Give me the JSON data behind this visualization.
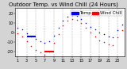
{
  "title": "Outdoor Temp. vs Wind Chill",
  "title2": "(24 Hours)",
  "bg_color": "#d4d4d4",
  "plot_bg_color": "#ffffff",
  "grid_color": "#888888",
  "temp_color": "#0000ff",
  "windchill_color": "#ff0000",
  "legend_temp_label": "Temp",
  "legend_wc_label": "Wind Chill",
  "temp_x": [
    1,
    2,
    3,
    4,
    5,
    6,
    7,
    8,
    9,
    10,
    11,
    12,
    13,
    14,
    15,
    16,
    17,
    18,
    19,
    20,
    21,
    22,
    23,
    24
  ],
  "temp_y": [
    5,
    3,
    -1,
    -4,
    -7,
    -9,
    -11,
    -9,
    -3,
    5,
    12,
    16,
    18,
    17,
    14,
    10,
    6,
    3,
    0,
    -2,
    -4,
    -5,
    2,
    8
  ],
  "wc_x": [
    1,
    2,
    3,
    4,
    5,
    6,
    7,
    8,
    9,
    10,
    11,
    12,
    13,
    14,
    15,
    16,
    17,
    18,
    19,
    20,
    21,
    22,
    23,
    24
  ],
  "wc_y": [
    -1,
    -4,
    -9,
    -14,
    -18,
    -21,
    -23,
    -20,
    -11,
    -2,
    7,
    12,
    14,
    13,
    10,
    5,
    0,
    -4,
    -8,
    -10,
    -12,
    -13,
    -5,
    2
  ],
  "ylim": [
    -25,
    25
  ],
  "ytick_values": [
    -20,
    -10,
    0,
    10,
    20
  ],
  "xtick_values": [
    1,
    3,
    5,
    7,
    9,
    11,
    13,
    15,
    17,
    19,
    21,
    23
  ],
  "xtick_labels": [
    "1",
    "3",
    "5",
    "7",
    "9",
    "11",
    "13",
    "15",
    "17",
    "19",
    "21",
    "23"
  ],
  "ytick_labels": [
    "-20",
    "-10",
    "0",
    "10",
    "20"
  ],
  "title_fontsize": 5.0,
  "tick_fontsize": 3.5,
  "legend_fontsize": 4.0,
  "marker_size": 1.2,
  "grid_xticks": [
    1,
    3,
    5,
    7,
    9,
    11,
    13,
    15,
    17,
    19,
    21,
    23
  ]
}
